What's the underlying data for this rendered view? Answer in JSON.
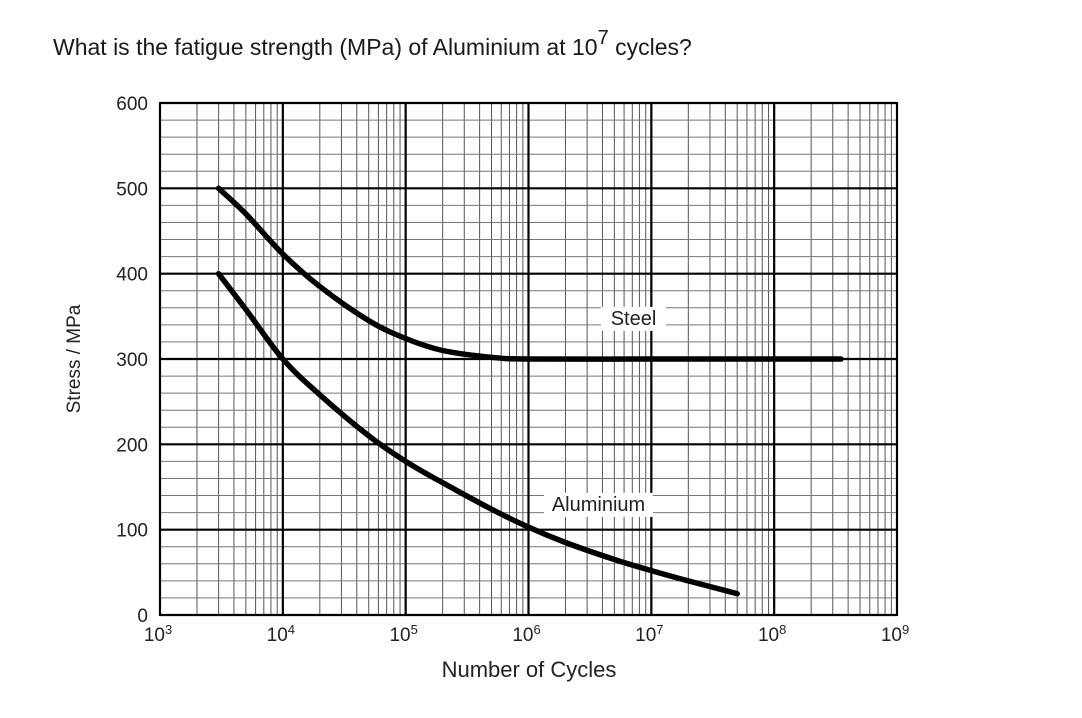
{
  "question": {
    "prefix": "What is the fatigue strength (MPa) of Aluminium at 10",
    "exponent": "7",
    "suffix": " cycles?"
  },
  "chart_data": {
    "type": "line",
    "x_scale": "log",
    "xlim": [
      1000,
      1000000000
    ],
    "ylim": [
      0,
      600
    ],
    "xlabel": "Number of Cycles",
    "ylabel": "Stress / MPa",
    "x_ticks": [
      {
        "base": "10",
        "exp": "3",
        "value": 1000
      },
      {
        "base": "10",
        "exp": "4",
        "value": 10000
      },
      {
        "base": "10",
        "exp": "5",
        "value": 100000
      },
      {
        "base": "10",
        "exp": "6",
        "value": 1000000
      },
      {
        "base": "10",
        "exp": "7",
        "value": 10000000
      },
      {
        "base": "10",
        "exp": "8",
        "value": 100000000
      },
      {
        "base": "10",
        "exp": "9",
        "value": 1000000000
      }
    ],
    "y_ticks": [
      "0",
      "100",
      "200",
      "300",
      "400",
      "500",
      "600"
    ],
    "grid": true,
    "series": [
      {
        "name": "Steel",
        "color": "#000000",
        "x": [
          3000,
          5000,
          10000,
          20000,
          50000,
          100000,
          200000,
          500000,
          1000000,
          10000000,
          100000000,
          350000000
        ],
        "y": [
          500,
          470,
          423,
          385,
          345,
          324,
          310,
          302,
          300,
          300,
          300,
          300
        ]
      },
      {
        "name": "Aluminium",
        "color": "#000000",
        "x": [
          3000,
          5000,
          10000,
          20000,
          50000,
          100000,
          200000,
          500000,
          1000000,
          2000000,
          5000000,
          10000000,
          20000000,
          50000000
        ],
        "y": [
          400,
          358,
          300,
          258,
          210,
          180,
          155,
          124,
          103,
          85,
          65,
          52,
          40,
          25
        ]
      }
    ]
  }
}
